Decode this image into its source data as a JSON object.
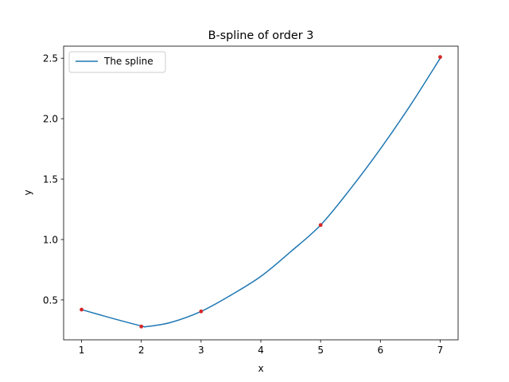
{
  "chart_data": {
    "type": "line",
    "title": "B-spline of order 3",
    "xlabel": "x",
    "ylabel": "y",
    "xlim": [
      0.7,
      7.3
    ],
    "ylim": [
      0.17,
      2.6
    ],
    "xticks": [
      1,
      2,
      3,
      4,
      5,
      6,
      7
    ],
    "xtick_labels": [
      "1",
      "2",
      "3",
      "4",
      "5",
      "6",
      "7"
    ],
    "yticks": [
      0.5,
      1.0,
      1.5,
      2.0,
      2.5
    ],
    "ytick_labels": [
      "0.5",
      "1.0",
      "1.5",
      "2.0",
      "2.5"
    ],
    "grid": false,
    "legend": {
      "placement": "upper-left"
    },
    "series": [
      {
        "name": "The spline",
        "kind": "line",
        "color": "#1f77b4",
        "x": [
          1.0,
          1.5,
          2.0,
          2.1,
          2.5,
          3.0,
          3.5,
          4.0,
          4.5,
          5.0,
          5.5,
          6.0,
          6.5,
          7.0
        ],
        "y": [
          0.42,
          0.35,
          0.285,
          0.28,
          0.315,
          0.405,
          0.54,
          0.695,
          0.9,
          1.12,
          1.42,
          1.75,
          2.11,
          2.5
        ]
      },
      {
        "name": "",
        "kind": "points",
        "color": "#d62728",
        "x": [
          1,
          2,
          3,
          5,
          7
        ],
        "y": [
          0.42,
          0.28,
          0.405,
          1.12,
          2.51
        ]
      }
    ]
  }
}
